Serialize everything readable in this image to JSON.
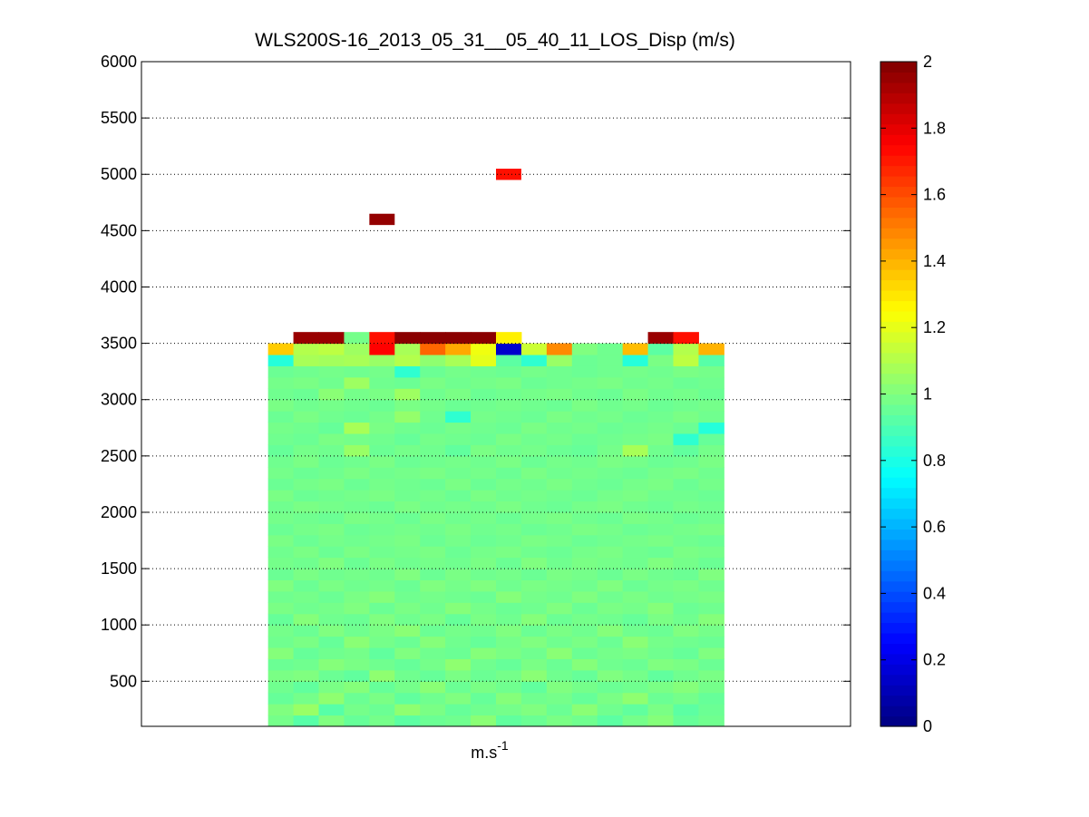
{
  "chart_data": {
    "type": "heatmap",
    "title": "WLS200S-16_2013_05_31__05_40_11_LOS_Disp (m/s)",
    "xlabel": "m.s",
    "xlabel_superscript": "-1",
    "ylabel": "",
    "ylim": [
      100,
      6000
    ],
    "yticks": [
      500,
      1000,
      1500,
      2000,
      2500,
      3000,
      3500,
      4000,
      4500,
      5000,
      5500,
      6000
    ],
    "xlim": [
      0,
      28
    ],
    "grid": "y-dotted",
    "colormap": "jet",
    "colorbar": {
      "min": 0,
      "max": 2,
      "ticks": [
        0,
        0.2,
        0.4,
        0.6,
        0.8,
        1,
        1.2,
        1.4,
        1.6,
        1.8,
        2
      ],
      "placement": "right"
    },
    "columns": 18,
    "column_start": 5,
    "column_width": 1,
    "row_start_altitude": 100,
    "row_height": 100,
    "rows": [
      [
        0.98,
        0.92,
        1.0,
        0.95,
        0.98,
        0.93,
        0.96,
        0.97,
        1.02,
        0.94,
        0.96,
        0.99,
        0.97,
        0.93,
        0.98,
        1.01,
        0.95,
        0.97
      ],
      [
        1.0,
        1.05,
        0.92,
        0.98,
        0.96,
        1.03,
        0.99,
        0.95,
        0.97,
        0.98,
        1.0,
        0.96,
        1.02,
        0.97,
        0.94,
        0.99,
        0.93,
        0.96
      ],
      [
        0.95,
        0.98,
        1.03,
        0.96,
        0.99,
        0.94,
        0.97,
        1.0,
        0.95,
        1.01,
        0.97,
        0.98,
        0.95,
        0.99,
        1.03,
        0.96,
        0.98,
        0.95
      ],
      [
        0.97,
        0.94,
        0.99,
        1.01,
        0.95,
        0.98,
        1.02,
        0.96,
        0.99,
        0.97,
        0.94,
        1.0,
        0.98,
        0.96,
        0.97,
        0.99,
        1.01,
        0.98
      ],
      [
        0.99,
        1.0,
        0.96,
        0.94,
        1.03,
        0.97,
        0.95,
        0.99,
        0.96,
        0.98,
        1.02,
        0.97,
        0.95,
        1.0,
        0.98,
        0.94,
        0.97,
        0.99
      ],
      [
        0.96,
        0.97,
        1.01,
        0.99,
        0.97,
        0.95,
        0.98,
        1.03,
        0.97,
        0.95,
        0.99,
        0.96,
        1.01,
        0.97,
        0.96,
        1.0,
        0.99,
        0.96
      ],
      [
        1.01,
        0.95,
        0.97,
        0.98,
        0.94,
        1.0,
        0.97,
        0.96,
        1.01,
        0.99,
        0.97,
        1.02,
        0.96,
        0.98,
        0.99,
        0.97,
        0.95,
        1.0
      ],
      [
        0.97,
        0.99,
        0.95,
        1.02,
        0.98,
        0.96,
        1.01,
        0.97,
        0.95,
        0.98,
        1.0,
        0.97,
        0.99,
        0.96,
        1.02,
        0.98,
        0.97,
        0.96
      ],
      [
        0.98,
        0.96,
        1.0,
        0.97,
        0.99,
        1.02,
        0.96,
        0.98,
        0.97,
        1.0,
        0.96,
        0.99,
        0.97,
        1.01,
        0.97,
        0.96,
        1.0,
        0.98
      ],
      [
        0.95,
        1.01,
        0.97,
        0.96,
        1.0,
        0.97,
        0.99,
        0.95,
        0.99,
        0.97,
        1.01,
        0.96,
        0.98,
        0.97,
        0.95,
        0.99,
        0.97,
        1.01
      ],
      [
        0.99,
        0.97,
        0.98,
        1.0,
        0.96,
        0.99,
        0.97,
        1.01,
        0.98,
        0.96,
        0.97,
        1.0,
        0.96,
        0.99,
        0.98,
        1.01,
        0.96,
        0.97
      ],
      [
        0.97,
        0.98,
        0.96,
        0.99,
        1.01,
        0.97,
        0.98,
        0.97,
        0.96,
        1.01,
        0.98,
        0.97,
        1.0,
        0.97,
        0.99,
        0.97,
        0.98,
        0.99
      ],
      [
        1.0,
        0.96,
        0.99,
        0.97,
        0.98,
        0.96,
        1.0,
        0.98,
        1.0,
        0.97,
        0.99,
        0.98,
        0.97,
        1.0,
        0.96,
        0.98,
        0.99,
        0.97
      ],
      [
        0.96,
        0.99,
        0.97,
        0.98,
        0.97,
        1.0,
        0.96,
        0.99,
        0.97,
        0.98,
        0.96,
        0.99,
        0.98,
        0.96,
        0.99,
        0.97,
        0.96,
        1.0
      ],
      [
        0.98,
        0.97,
        1.0,
        0.96,
        0.99,
        0.97,
        0.98,
        0.97,
        0.99,
        0.96,
        1.0,
        0.97,
        0.99,
        0.98,
        0.97,
        1.0,
        0.98,
        0.96
      ],
      [
        0.97,
        0.99,
        0.96,
        0.99,
        0.97,
        0.98,
        0.99,
        0.96,
        0.98,
        0.99,
        0.97,
        0.96,
        0.98,
        0.99,
        0.97,
        0.96,
        0.99,
        0.98
      ],
      [
        0.99,
        0.96,
        0.98,
        0.97,
        0.98,
        0.99,
        0.96,
        0.98,
        0.96,
        0.97,
        0.99,
        0.98,
        0.96,
        0.97,
        0.98,
        0.99,
        0.97,
        0.96
      ],
      [
        0.96,
        0.98,
        0.99,
        0.96,
        0.97,
        0.98,
        0.97,
        0.99,
        0.97,
        0.98,
        0.96,
        0.97,
        0.99,
        0.98,
        0.96,
        0.97,
        0.98,
        0.99
      ],
      [
        0.98,
        0.97,
        0.96,
        0.99,
        0.98,
        0.96,
        0.99,
        0.97,
        0.98,
        0.96,
        0.98,
        0.99,
        0.97,
        0.96,
        0.99,
        0.98,
        0.96,
        0.97
      ],
      [
        0.97,
        0.99,
        0.98,
        0.97,
        0.96,
        0.99,
        0.97,
        0.98,
        0.97,
        0.99,
        0.97,
        0.96,
        0.98,
        0.99,
        0.97,
        0.96,
        0.98,
        0.97
      ],
      [
        0.99,
        0.96,
        0.97,
        0.98,
        0.99,
        0.97,
        0.98,
        0.96,
        0.99,
        0.97,
        0.98,
        0.97,
        0.96,
        0.98,
        0.99,
        0.97,
        0.97,
        0.96
      ],
      [
        0.96,
        0.98,
        0.99,
        0.96,
        0.98,
        0.97,
        0.96,
        0.99,
        0.96,
        0.98,
        0.97,
        0.99,
        0.97,
        0.96,
        0.98,
        0.99,
        0.96,
        0.98
      ],
      [
        0.98,
        0.96,
        0.97,
        0.99,
        0.97,
        0.98,
        0.99,
        0.97,
        0.98,
        0.96,
        0.99,
        0.97,
        0.98,
        0.97,
        0.96,
        0.98,
        0.99,
        0.97
      ],
      [
        0.97,
        0.99,
        0.96,
        0.97,
        0.99,
        0.96,
        0.97,
        0.98,
        0.97,
        0.99,
        0.96,
        0.98,
        0.97,
        0.99,
        0.98,
        0.96,
        0.97,
        0.99
      ],
      [
        0.95,
        0.98,
        0.97,
        1.05,
        0.96,
        0.98,
        0.97,
        0.94,
        0.99,
        0.97,
        0.98,
        0.96,
        0.95,
        0.98,
        1.08,
        0.97,
        0.94,
        0.98
      ],
      [
        0.97,
        0.96,
        0.99,
        0.98,
        0.97,
        0.95,
        0.98,
        0.97,
        0.96,
        0.99,
        0.97,
        0.98,
        0.96,
        0.97,
        0.98,
        0.99,
        0.84,
        0.95
      ],
      [
        0.98,
        0.97,
        0.95,
        1.08,
        0.99,
        0.97,
        0.96,
        0.98,
        0.97,
        0.96,
        0.99,
        0.97,
        0.98,
        0.96,
        0.97,
        0.98,
        0.96,
        0.82
      ],
      [
        0.96,
        0.99,
        0.97,
        0.96,
        0.98,
        1.04,
        0.97,
        0.84,
        0.98,
        0.97,
        0.96,
        0.99,
        0.97,
        0.98,
        0.96,
        0.97,
        0.99,
        0.97
      ],
      [
        0.99,
        0.97,
        0.98,
        0.97,
        0.96,
        0.99,
        0.98,
        0.96,
        0.97,
        0.98,
        0.97,
        0.96,
        0.99,
        0.97,
        0.98,
        0.96,
        0.97,
        0.98
      ],
      [
        0.97,
        0.96,
        1.02,
        0.98,
        0.99,
        1.06,
        0.97,
        0.99,
        0.96,
        0.97,
        0.98,
        0.99,
        0.97,
        0.96,
        0.99,
        0.97,
        0.98,
        0.96
      ],
      [
        0.98,
        0.99,
        0.97,
        1.06,
        0.97,
        0.96,
        0.99,
        0.97,
        0.98,
        0.99,
        0.96,
        0.97,
        0.98,
        0.99,
        0.97,
        0.98,
        0.96,
        0.97
      ],
      [
        0.96,
        0.97,
        0.98,
        0.97,
        0.98,
        0.84,
        0.96,
        0.98,
        0.97,
        0.96,
        0.98,
        0.97,
        0.96,
        0.97,
        0.98,
        0.97,
        0.99,
        0.98
      ],
      [
        0.82,
        1.08,
        1.07,
        1.08,
        1.05,
        1.1,
        1.03,
        1.08,
        1.2,
        0.93,
        0.84,
        1.05,
        0.96,
        0.97,
        0.82,
        0.99,
        1.12,
        0.92
      ],
      [
        1.35,
        1.1,
        1.12,
        1.06,
        1.75,
        1.08,
        1.55,
        1.42,
        1.22,
        0.15,
        1.15,
        1.48,
        1.0,
        0.97,
        1.38,
        0.93,
        1.1,
        1.4
      ],
      [
        null,
        1.95,
        1.95,
        0.98,
        1.72,
        1.98,
        1.98,
        1.98,
        1.98,
        1.28,
        null,
        null,
        null,
        null,
        null,
        1.95,
        1.72,
        null
      ]
    ],
    "isolated_cells": [
      {
        "column": 9,
        "altitude": 4600,
        "value": 1.96
      },
      {
        "column": 14,
        "altitude": 5000,
        "value": 1.72
      }
    ]
  }
}
